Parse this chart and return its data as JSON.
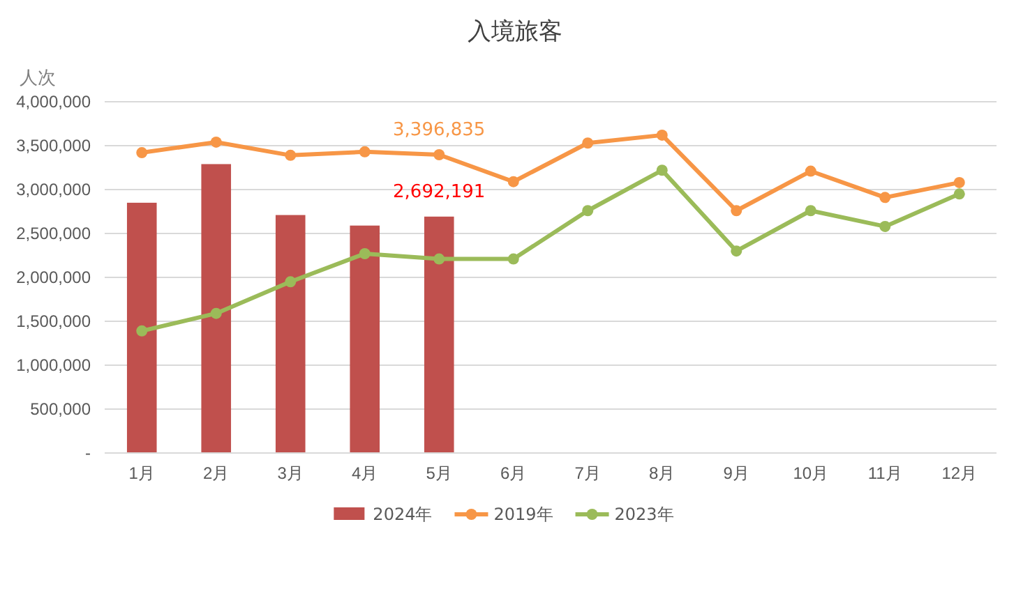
{
  "chart_data": {
    "type": "bar",
    "title": "入境旅客",
    "ylabel": "人次",
    "categories": [
      "1月",
      "2月",
      "3月",
      "4月",
      "5月",
      "6月",
      "7月",
      "8月",
      "9月",
      "10月",
      "11月",
      "12月"
    ],
    "series": [
      {
        "name": "2024年",
        "color": "#c0504d",
        "values": [
          2850000,
          3290000,
          2710000,
          2590000,
          2692191,
          null,
          null,
          null,
          null,
          null,
          null,
          null
        ],
        "value_labels": [
          null,
          null,
          null,
          null,
          "2,692,191",
          null,
          null,
          null,
          null,
          null,
          null,
          null
        ]
      },
      {
        "name": "2019年",
        "type": "line",
        "color": "#f79646",
        "values": [
          3420000,
          3540000,
          3390000,
          3430000,
          3396835,
          3090000,
          3530000,
          3620000,
          2760000,
          3210000,
          2910000,
          3080000
        ],
        "value_labels": [
          null,
          null,
          null,
          null,
          "3,396,835",
          null,
          null,
          null,
          null,
          null,
          null,
          null
        ]
      },
      {
        "name": "2023年",
        "type": "line",
        "color": "#9bbb59",
        "values": [
          1390000,
          1590000,
          1950000,
          2270000,
          2210000,
          2210000,
          2760000,
          3220000,
          2300000,
          2760000,
          2580000,
          2950000
        ]
      }
    ],
    "ylim": [
      0,
      4000000
    ],
    "yticks": [
      {
        "value": 0,
        "label": "-"
      },
      {
        "value": 500000,
        "label": "500,000"
      },
      {
        "value": 1000000,
        "label": "1,000,000"
      },
      {
        "value": 1500000,
        "label": "1,500,000"
      },
      {
        "value": 2000000,
        "label": "2,000,000"
      },
      {
        "value": 2500000,
        "label": "2,500,000"
      },
      {
        "value": 3000000,
        "label": "3,000,000"
      },
      {
        "value": 3500000,
        "label": "3,500,000"
      },
      {
        "value": 4000000,
        "label": "4,000,000"
      }
    ],
    "grid": "y",
    "legend": "bottom",
    "marker": "circle",
    "line_style": "solid"
  }
}
